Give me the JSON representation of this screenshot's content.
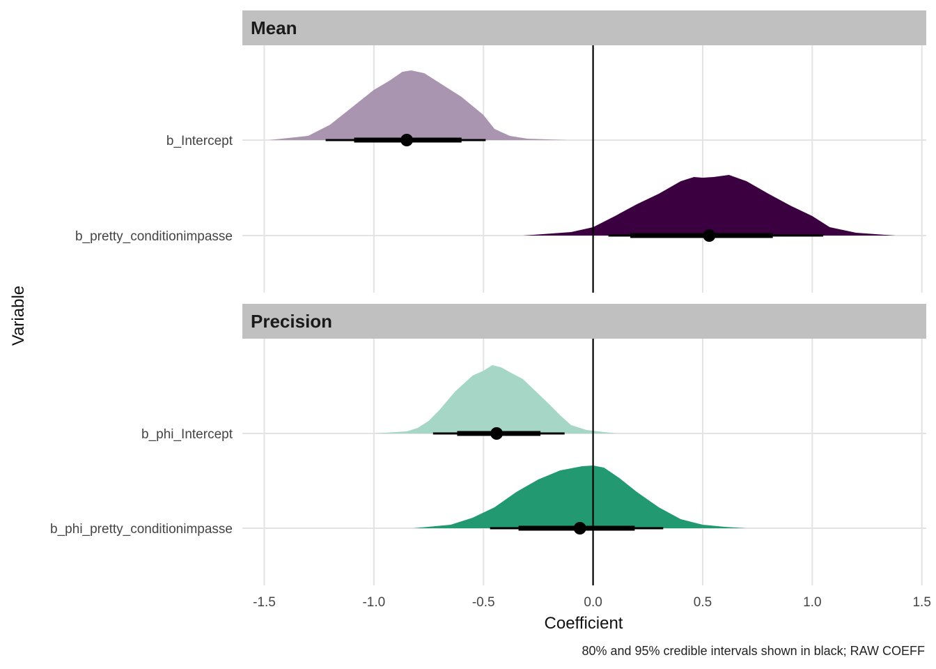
{
  "chart_data": {
    "type": "area",
    "xlabel": "Coefficient",
    "ylabel": "Variable",
    "caption": "80% and 95% credible intervals shown in black; RAW COEFF",
    "xlim": [
      -1.6,
      1.52
    ],
    "x_ticks": [
      {
        "value": -1.5,
        "label": "-1.5"
      },
      {
        "value": -1.0,
        "label": "-1.0"
      },
      {
        "value": -0.5,
        "label": "-0.5"
      },
      {
        "value": 0.0,
        "label": "0.0"
      },
      {
        "value": 0.5,
        "label": "0.5"
      },
      {
        "value": 1.0,
        "label": "1.0"
      },
      {
        "value": 1.5,
        "label": "1.5"
      }
    ],
    "reference_line": 0.0,
    "grid": true,
    "panels": [
      {
        "name": "Mean",
        "variables": [
          {
            "label": "b_Intercept",
            "color": "#AA95B1",
            "median": -0.85,
            "ci80": [
              -1.09,
              -0.6
            ],
            "ci95": [
              -1.22,
              -0.49
            ],
            "density": [
              [
                -1.48,
                0.0
              ],
              [
                -1.3,
                0.06
              ],
              [
                -1.2,
                0.22
              ],
              [
                -1.1,
                0.47
              ],
              [
                -1.0,
                0.72
              ],
              [
                -0.93,
                0.85
              ],
              [
                -0.87,
                0.98
              ],
              [
                -0.83,
                1.0
              ],
              [
                -0.77,
                0.96
              ],
              [
                -0.7,
                0.82
              ],
              [
                -0.6,
                0.62
              ],
              [
                -0.5,
                0.36
              ],
              [
                -0.45,
                0.16
              ],
              [
                -0.38,
                0.06
              ],
              [
                -0.3,
                0.02
              ],
              [
                -0.12,
                0.0
              ]
            ]
          },
          {
            "label": "b_pretty_conditionimpasse",
            "color": "#3B0040",
            "median": 0.53,
            "ci80": [
              0.17,
              0.82
            ],
            "ci95": [
              0.07,
              1.05
            ],
            "density": [
              [
                -0.32,
                0.0
              ],
              [
                -0.1,
                0.05
              ],
              [
                0.0,
                0.12
              ],
              [
                0.1,
                0.28
              ],
              [
                0.2,
                0.45
              ],
              [
                0.3,
                0.6
              ],
              [
                0.4,
                0.78
              ],
              [
                0.46,
                0.84
              ],
              [
                0.5,
                0.83
              ],
              [
                0.55,
                0.84
              ],
              [
                0.62,
                0.87
              ],
              [
                0.7,
                0.78
              ],
              [
                0.8,
                0.6
              ],
              [
                0.9,
                0.43
              ],
              [
                1.0,
                0.28
              ],
              [
                1.08,
                0.12
              ],
              [
                1.2,
                0.04
              ],
              [
                1.38,
                0.0
              ]
            ]
          }
        ]
      },
      {
        "name": "Precision",
        "variables": [
          {
            "label": "b_phi_Intercept",
            "color": "#A6D6C6",
            "median": -0.44,
            "ci80": [
              -0.62,
              -0.24
            ],
            "ci95": [
              -0.73,
              -0.13
            ],
            "density": [
              [
                -1.0,
                0.0
              ],
              [
                -0.85,
                0.03
              ],
              [
                -0.8,
                0.08
              ],
              [
                -0.75,
                0.18
              ],
              [
                -0.7,
                0.34
              ],
              [
                -0.63,
                0.6
              ],
              [
                -0.55,
                0.83
              ],
              [
                -0.5,
                0.9
              ],
              [
                -0.46,
                0.98
              ],
              [
                -0.42,
                0.95
              ],
              [
                -0.38,
                0.88
              ],
              [
                -0.32,
                0.78
              ],
              [
                -0.26,
                0.6
              ],
              [
                -0.2,
                0.42
              ],
              [
                -0.15,
                0.26
              ],
              [
                -0.1,
                0.12
              ],
              [
                -0.03,
                0.05
              ],
              [
                0.05,
                0.02
              ],
              [
                0.11,
                0.0
              ]
            ]
          },
          {
            "label": "b_phi_pretty_conditionimpasse",
            "color": "#229970",
            "median": -0.06,
            "ci80": [
              -0.34,
              0.19
            ],
            "ci95": [
              -0.47,
              0.32
            ],
            "density": [
              [
                -0.82,
                0.0
              ],
              [
                -0.65,
                0.05
              ],
              [
                -0.55,
                0.15
              ],
              [
                -0.45,
                0.3
              ],
              [
                -0.35,
                0.52
              ],
              [
                -0.25,
                0.7
              ],
              [
                -0.15,
                0.83
              ],
              [
                -0.05,
                0.89
              ],
              [
                0.0,
                0.9
              ],
              [
                0.05,
                0.87
              ],
              [
                0.12,
                0.72
              ],
              [
                0.2,
                0.52
              ],
              [
                0.3,
                0.3
              ],
              [
                0.4,
                0.13
              ],
              [
                0.5,
                0.05
              ],
              [
                0.6,
                0.02
              ],
              [
                0.7,
                0.0
              ]
            ]
          }
        ]
      }
    ]
  }
}
